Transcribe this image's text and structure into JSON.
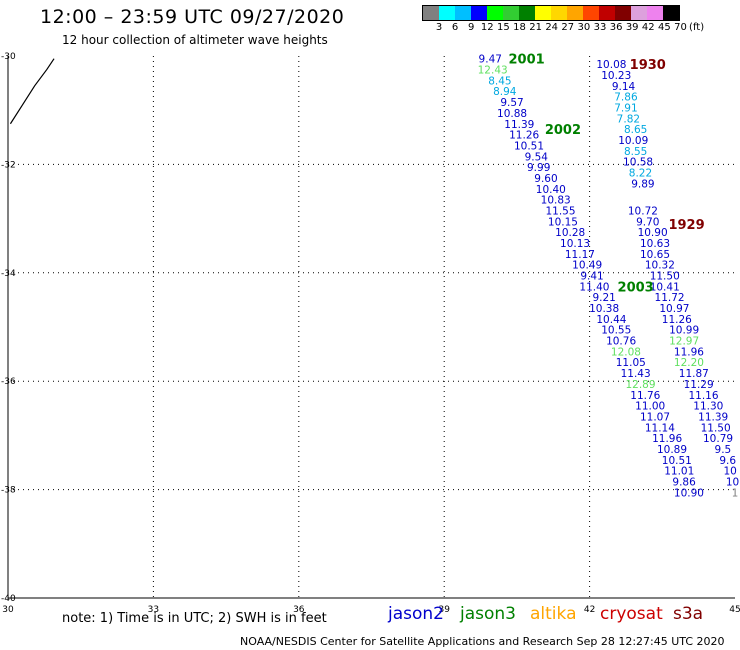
{
  "header": {
    "title": "12:00 – 23:59 UTC 09/27/2020",
    "subtitle": "12 hour collection of altimeter wave heights"
  },
  "color_scale": {
    "colors": [
      "#808080",
      "#00ffff",
      "#00bfff",
      "#0000ff",
      "#00ff00",
      "#32cd32",
      "#008000",
      "#ffff00",
      "#ffd700",
      "#ffa500",
      "#ff4500",
      "#c00000",
      "#800000",
      "#dda0dd",
      "#ee82ee",
      "#000000"
    ],
    "labels": [
      "3",
      "6",
      "9",
      "12",
      "15",
      "18",
      "21",
      "24",
      "27",
      "30",
      "33",
      "36",
      "39",
      "42",
      "45",
      "70",
      "(ft)"
    ]
  },
  "legend": [
    {
      "name": "jason2",
      "color": "#0000cc"
    },
    {
      "name": "jason3",
      "color": "#008000"
    },
    {
      "name": "altika",
      "color": "#ffa500"
    },
    {
      "name": "cryosat",
      "color": "#cc0000"
    },
    {
      "name": "s3a",
      "color": "#800000"
    }
  ],
  "note": "note: 1) Time is in UTC; 2) SWH is in feet",
  "credit": "NOAA/NESDIS Center for Satellite Applications and Research   Sep 28 12:27:45 UTC 2020",
  "chart_data": {
    "type": "scatter",
    "xlim": [
      30,
      45
    ],
    "ylim": [
      -40,
      -30
    ],
    "x_ticks": [
      "30",
      "33",
      "36",
      "39",
      "42",
      "45"
    ],
    "y_ticks": [
      "-30",
      "-32",
      "-34",
      "-36",
      "-38",
      "-40"
    ],
    "grid": true,
    "coastline": [
      [
        30.05,
        -31.25
      ],
      [
        30.3,
        -30.9
      ],
      [
        30.55,
        -30.55
      ],
      [
        30.8,
        -30.25
      ],
      [
        30.95,
        -30.05
      ]
    ],
    "passes": [
      {
        "label": "2001",
        "x": 40.7,
        "y": -30.05,
        "color": "#008000"
      },
      {
        "label": "1930",
        "x": 43.2,
        "y": -30.15,
        "color": "#800000"
      },
      {
        "label": "2002",
        "x": 41.45,
        "y": -31.35,
        "color": "#008000"
      },
      {
        "label": "1929",
        "x": 44.0,
        "y": -33.1,
        "color": "#800000"
      },
      {
        "label": "2003",
        "x": 42.95,
        "y": -34.25,
        "color": "#008000"
      }
    ],
    "series": [
      {
        "points": [
          {
            "x": 39.95,
            "y": -30.05,
            "v": "9.47"
          },
          {
            "x": 40.0,
            "y": -30.25,
            "v": "12.43"
          },
          {
            "x": 40.15,
            "y": -30.45,
            "v": "8.45"
          },
          {
            "x": 40.25,
            "y": -30.65,
            "v": "8.94"
          },
          {
            "x": 40.4,
            "y": -30.85,
            "v": "9.57"
          },
          {
            "x": 40.4,
            "y": -31.05,
            "v": "10.88"
          },
          {
            "x": 40.55,
            "y": -31.25,
            "v": "11.39"
          },
          {
            "x": 40.65,
            "y": -31.45,
            "v": "11.26"
          },
          {
            "x": 40.75,
            "y": -31.65,
            "v": "10.51"
          },
          {
            "x": 40.9,
            "y": -31.85,
            "v": "9.54"
          },
          {
            "x": 40.95,
            "y": -32.05,
            "v": "9.99"
          },
          {
            "x": 41.1,
            "y": -32.25,
            "v": "9.60"
          },
          {
            "x": 41.2,
            "y": -32.45,
            "v": "10.40"
          },
          {
            "x": 41.3,
            "y": -32.65,
            "v": "10.83"
          },
          {
            "x": 41.4,
            "y": -32.85,
            "v": "11.55"
          },
          {
            "x": 41.45,
            "y": -33.05,
            "v": "10.15"
          },
          {
            "x": 41.6,
            "y": -33.25,
            "v": "10.28"
          },
          {
            "x": 41.7,
            "y": -33.45,
            "v": "10.13"
          },
          {
            "x": 41.8,
            "y": -33.65,
            "v": "11.17"
          },
          {
            "x": 41.95,
            "y": -33.85,
            "v": "10.49"
          },
          {
            "x": 42.05,
            "y": -34.05,
            "v": "9.41"
          },
          {
            "x": 42.1,
            "y": -34.25,
            "v": "11.40"
          },
          {
            "x": 42.3,
            "y": -34.45,
            "v": "9.21"
          },
          {
            "x": 42.3,
            "y": -34.65,
            "v": "10.38"
          },
          {
            "x": 42.45,
            "y": -34.85,
            "v": "10.44"
          },
          {
            "x": 42.55,
            "y": -35.05,
            "v": "10.55"
          },
          {
            "x": 42.65,
            "y": -35.25,
            "v": "10.76"
          },
          {
            "x": 42.75,
            "y": -35.45,
            "v": "12.08"
          },
          {
            "x": 42.85,
            "y": -35.65,
            "v": "11.05"
          },
          {
            "x": 42.95,
            "y": -35.85,
            "v": "11.43"
          },
          {
            "x": 43.05,
            "y": -36.05,
            "v": "12.89"
          },
          {
            "x": 43.15,
            "y": -36.25,
            "v": "11.76"
          },
          {
            "x": 43.25,
            "y": -36.45,
            "v": "11.00"
          },
          {
            "x": 43.35,
            "y": -36.65,
            "v": "11.07"
          },
          {
            "x": 43.45,
            "y": -36.85,
            "v": "11.14"
          },
          {
            "x": 43.6,
            "y": -37.05,
            "v": "11.96"
          },
          {
            "x": 43.7,
            "y": -37.25,
            "v": "10.89"
          },
          {
            "x": 43.8,
            "y": -37.45,
            "v": "10.51"
          },
          {
            "x": 43.85,
            "y": -37.65,
            "v": "11.01"
          },
          {
            "x": 43.95,
            "y": -37.85,
            "v": "9.86"
          },
          {
            "x": 44.05,
            "y": -38.05,
            "v": "10.90"
          }
        ]
      },
      {
        "points": [
          {
            "x": 42.45,
            "y": -30.15,
            "v": "10.08"
          },
          {
            "x": 42.55,
            "y": -30.35,
            "v": "10.23"
          },
          {
            "x": 42.7,
            "y": -30.55,
            "v": "9.14"
          },
          {
            "x": 42.75,
            "y": -30.75,
            "v": "7.86"
          },
          {
            "x": 42.75,
            "y": -30.95,
            "v": "7.91"
          },
          {
            "x": 42.8,
            "y": -31.15,
            "v": "7.82"
          },
          {
            "x": 42.95,
            "y": -31.35,
            "v": "8.65"
          },
          {
            "x": 42.9,
            "y": -31.55,
            "v": "10.09"
          },
          {
            "x": 42.95,
            "y": -31.75,
            "v": "8.55"
          },
          {
            "x": 43.0,
            "y": -31.95,
            "v": "10.58"
          },
          {
            "x": 43.05,
            "y": -32.15,
            "v": "8.22"
          },
          {
            "x": 43.1,
            "y": -32.35,
            "v": "9.89"
          },
          {
            "x": 43.1,
            "y": -32.85,
            "v": "10.72"
          },
          {
            "x": 43.2,
            "y": -33.05,
            "v": "9.70"
          },
          {
            "x": 43.3,
            "y": -33.25,
            "v": "10.90"
          },
          {
            "x": 43.35,
            "y": -33.45,
            "v": "10.63"
          },
          {
            "x": 43.35,
            "y": -33.65,
            "v": "10.65"
          },
          {
            "x": 43.45,
            "y": -33.85,
            "v": "10.32"
          },
          {
            "x": 43.55,
            "y": -34.05,
            "v": "11.50"
          },
          {
            "x": 43.55,
            "y": -34.25,
            "v": "10.41"
          },
          {
            "x": 43.65,
            "y": -34.45,
            "v": "11.72"
          },
          {
            "x": 43.75,
            "y": -34.65,
            "v": "10.97"
          },
          {
            "x": 43.8,
            "y": -34.85,
            "v": "11.26"
          },
          {
            "x": 43.95,
            "y": -35.05,
            "v": "10.99"
          },
          {
            "x": 43.95,
            "y": -35.25,
            "v": "12.97"
          },
          {
            "x": 44.05,
            "y": -35.45,
            "v": "11.96"
          },
          {
            "x": 44.05,
            "y": -35.65,
            "v": "12.20"
          },
          {
            "x": 44.15,
            "y": -35.85,
            "v": "11.87"
          },
          {
            "x": 44.25,
            "y": -36.05,
            "v": "11.29"
          },
          {
            "x": 44.35,
            "y": -36.25,
            "v": "11.16"
          },
          {
            "x": 44.45,
            "y": -36.45,
            "v": "11.30"
          },
          {
            "x": 44.55,
            "y": -36.65,
            "v": "11.39"
          },
          {
            "x": 44.6,
            "y": -36.85,
            "v": "11.50"
          },
          {
            "x": 44.65,
            "y": -37.05,
            "v": "10.79"
          },
          {
            "x": 44.75,
            "y": -37.25,
            "v": "9.5"
          },
          {
            "x": 44.85,
            "y": -37.45,
            "v": "9.6"
          },
          {
            "x": 44.9,
            "y": -37.65,
            "v": "10"
          },
          {
            "x": 44.95,
            "y": -37.85,
            "v": "10"
          },
          {
            "x": 45.0,
            "y": -38.05,
            "v": "1"
          }
        ]
      }
    ]
  }
}
